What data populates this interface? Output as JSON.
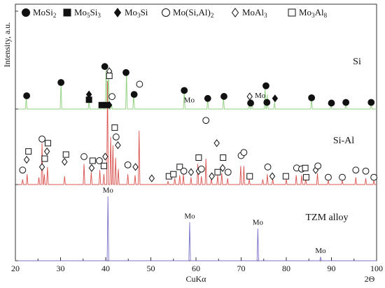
{
  "chart_data": {
    "type": "line",
    "xlabel": "CuKα",
    "xunit": "2Θ",
    "ylabel": "Intensity, a.u.",
    "xlim": [
      20,
      100
    ],
    "xticks": [
      20,
      30,
      40,
      50,
      60,
      70,
      80,
      90,
      100
    ],
    "legend": [
      {
        "name": "MoSi",
        "sub": "2",
        "marker": "filled-circle"
      },
      {
        "name": "Mo",
        "sub": "5",
        "name2": "Si",
        "sub2": "3",
        "marker": "filled-square"
      },
      {
        "name": "Mo",
        "sub": "3",
        "name2": "Si",
        "sub2": "",
        "marker": "filled-diamond"
      },
      {
        "name": "Mo(Si,Al)",
        "sub": "2",
        "marker": "open-circle"
      },
      {
        "name": "MoAl",
        "sub": "3",
        "marker": "open-diamond"
      },
      {
        "name": "Mo",
        "sub": "3",
        "name2": "Al",
        "sub2": "8",
        "marker": "open-square"
      }
    ],
    "colors": {
      "Si": "#8fd07c",
      "Si-Al": "#d9534f",
      "TZM alloy": "#7b73c9"
    },
    "series": [
      {
        "name": "Si",
        "baseline": 0.0,
        "peaks": [
          [
            22.4,
            0.17
          ],
          [
            30.1,
            0.37
          ],
          [
            36.3,
            0.12
          ],
          [
            39.2,
            0.06
          ],
          [
            40.1,
            0.62
          ],
          [
            40.6,
            0.58
          ],
          [
            41.3,
            0.06
          ],
          [
            44.6,
            0.56
          ],
          [
            46.2,
            0.22
          ],
          [
            57.4,
            0.26
          ],
          [
            62.6,
            0.14
          ],
          [
            66.1,
            0.17
          ],
          [
            71.8,
            0.1
          ],
          [
            72.4,
            0.14
          ],
          [
            75.3,
            0.32
          ],
          [
            75.8,
            0.22
          ],
          [
            77.4,
            0.1
          ],
          [
            85.6,
            0.16
          ],
          [
            89.9,
            0.07
          ],
          [
            93.2,
            0.09
          ],
          [
            98.8,
            0.09
          ]
        ],
        "markers": [
          {
            "x": 22.5,
            "y": 0.2,
            "m": "filled-circle"
          },
          {
            "x": 30.1,
            "y": 0.4,
            "m": "filled-circle"
          },
          {
            "x": 36.3,
            "y": 0.22,
            "m": "filled-diamond"
          },
          {
            "x": 36.3,
            "y": 0.14,
            "m": "filled-square"
          },
          {
            "x": 39.1,
            "y": 0.06,
            "m": "filled-square"
          },
          {
            "x": 39.8,
            "y": 0.64,
            "m": "filled-circle"
          },
          {
            "x": 40.2,
            "y": 0.06,
            "m": "filled-square"
          },
          {
            "x": 40.8,
            "y": 0.06,
            "m": "filled-diamond"
          },
          {
            "x": 40.8,
            "y": 0.57,
            "m": "open-diamond"
          },
          {
            "x": 40.8,
            "y": 0.5,
            "m": "open-square"
          },
          {
            "x": 44.5,
            "y": 0.55,
            "m": "filled-circle"
          },
          {
            "x": 46.3,
            "y": 0.22,
            "m": "filled-circle"
          },
          {
            "x": 57.4,
            "y": 0.28,
            "m": "filled-circle"
          },
          {
            "x": 62.6,
            "y": 0.16,
            "m": "filled-circle"
          },
          {
            "x": 66.2,
            "y": 0.19,
            "m": "filled-circle"
          },
          {
            "x": 71.9,
            "y": 0.19,
            "m": "open-diamond"
          },
          {
            "x": 72.1,
            "y": 0.09,
            "m": "filled-circle"
          },
          {
            "x": 75.5,
            "y": 0.35,
            "m": "filled-circle"
          },
          {
            "x": 75.7,
            "y": 0.1,
            "m": "filled-circle"
          },
          {
            "x": 77.5,
            "y": 0.16,
            "m": "filled-diamond"
          },
          {
            "x": 85.6,
            "y": 0.17,
            "m": "filled-circle"
          },
          {
            "x": 90.0,
            "y": 0.09,
            "m": "filled-circle"
          },
          {
            "x": 93.2,
            "y": 0.1,
            "m": "filled-circle"
          },
          {
            "x": 98.8,
            "y": 0.1,
            "m": "filled-circle"
          }
        ],
        "annotations": [
          {
            "text": "Mo",
            "x": 58.5,
            "y": 0.1
          },
          {
            "text": "Mo",
            "x": 74.2,
            "y": 0.17
          }
        ]
      },
      {
        "name": "Si-Al",
        "baseline": 0.0,
        "peaks": [
          [
            21.6,
            0.05
          ],
          [
            22.6,
            0.1
          ],
          [
            25.2,
            0.07
          ],
          [
            25.9,
            0.4
          ],
          [
            26.4,
            0.1
          ],
          [
            27.1,
            0.17
          ],
          [
            30.9,
            0.08
          ],
          [
            35.2,
            0.2
          ],
          [
            36.8,
            0.12
          ],
          [
            38.7,
            0.14
          ],
          [
            39.6,
            0.1
          ],
          [
            40.4,
            1.0
          ],
          [
            41.1,
            0.46
          ],
          [
            41.6,
            0.38
          ],
          [
            42.2,
            0.26
          ],
          [
            42.8,
            0.15
          ],
          [
            44.9,
            0.1
          ],
          [
            46.5,
            0.09
          ],
          [
            47.4,
            0.52
          ],
          [
            53.8,
            0.03
          ],
          [
            55.3,
            0.06
          ],
          [
            56.4,
            0.09
          ],
          [
            57.2,
            0.1
          ],
          [
            58.9,
            0.07
          ],
          [
            60.4,
            0.2
          ],
          [
            61.2,
            0.08
          ],
          [
            62.2,
            0.25
          ],
          [
            63.4,
            0.06
          ],
          [
            64.8,
            0.09
          ],
          [
            65.7,
            0.11
          ],
          [
            67.0,
            0.06
          ],
          [
            69.9,
            0.18
          ],
          [
            70.6,
            0.18
          ],
          [
            71.8,
            0.05
          ],
          [
            74.8,
            0.05
          ],
          [
            75.8,
            0.1
          ],
          [
            77.0,
            0.05
          ],
          [
            80.0,
            0.05
          ],
          [
            82.2,
            0.09
          ],
          [
            83.4,
            0.09
          ],
          [
            84.3,
            0.06
          ],
          [
            86.9,
            0.11
          ],
          [
            89.3,
            0.04
          ],
          [
            92.4,
            0.04
          ],
          [
            95.4,
            0.07
          ],
          [
            97.6,
            0.06
          ],
          [
            99.4,
            0.04
          ]
        ],
        "markers": [
          {
            "x": 21.6,
            "y": 0.14,
            "m": "open-circle"
          },
          {
            "x": 22.5,
            "y": 0.24,
            "m": "open-diamond"
          },
          {
            "x": 22.9,
            "y": 0.32,
            "m": "open-square"
          },
          {
            "x": 25.9,
            "y": 0.44,
            "m": "open-circle"
          },
          {
            "x": 25.9,
            "y": 0.17,
            "m": "open-diamond"
          },
          {
            "x": 26.5,
            "y": 0.25,
            "m": "open-square"
          },
          {
            "x": 27.0,
            "y": 0.32,
            "m": "open-diamond"
          },
          {
            "x": 27.2,
            "y": 0.4,
            "m": "open-square"
          },
          {
            "x": 30.9,
            "y": 0.22,
            "m": "open-diamond"
          },
          {
            "x": 31.2,
            "y": 0.29,
            "m": "open-square"
          },
          {
            "x": 35.2,
            "y": 0.27,
            "m": "open-circle"
          },
          {
            "x": 36.9,
            "y": 0.16,
            "m": "open-diamond"
          },
          {
            "x": 37.1,
            "y": 0.23,
            "m": "open-square"
          },
          {
            "x": 38.6,
            "y": 0.23,
            "m": "open-circle"
          },
          {
            "x": 39.6,
            "y": 0.18,
            "m": "open-square"
          },
          {
            "x": 39.9,
            "y": 0.27,
            "m": "open-diamond"
          },
          {
            "x": 41.4,
            "y": 0.85,
            "m": "open-circle"
          },
          {
            "x": 42.0,
            "y": 0.55,
            "m": "open-square"
          },
          {
            "x": 42.3,
            "y": 0.46,
            "m": "open-circle"
          },
          {
            "x": 42.7,
            "y": 0.38,
            "m": "open-diamond"
          },
          {
            "x": 44.9,
            "y": 0.19,
            "m": "open-circle"
          },
          {
            "x": 46.6,
            "y": 0.17,
            "m": "open-diamond"
          },
          {
            "x": 47.5,
            "y": 0.97,
            "m": "open-circle"
          },
          {
            "x": 50.2,
            "y": 0.06,
            "m": "open-diamond"
          },
          {
            "x": 54.0,
            "y": 0.08,
            "m": "open-square"
          },
          {
            "x": 55.0,
            "y": 0.1,
            "m": "open-square"
          },
          {
            "x": 56.4,
            "y": 0.17,
            "m": "open-square"
          },
          {
            "x": 57.3,
            "y": 0.13,
            "m": "open-circle"
          },
          {
            "x": 58.9,
            "y": 0.12,
            "m": "open-diamond"
          },
          {
            "x": 60.6,
            "y": 0.13,
            "m": "open-diamond"
          },
          {
            "x": 60.6,
            "y": 0.26,
            "m": "open-square"
          },
          {
            "x": 61.2,
            "y": 0.15,
            "m": "open-circle"
          },
          {
            "x": 62.2,
            "y": 0.62,
            "m": "open-circle"
          },
          {
            "x": 63.5,
            "y": 0.08,
            "m": "open-diamond"
          },
          {
            "x": 64.6,
            "y": 0.4,
            "m": "open-diamond"
          },
          {
            "x": 64.8,
            "y": 0.12,
            "m": "open-square"
          },
          {
            "x": 65.9,
            "y": 0.16,
            "m": "open-diamond"
          },
          {
            "x": 66.0,
            "y": 0.26,
            "m": "open-square"
          },
          {
            "x": 67.1,
            "y": 0.12,
            "m": "open-circle"
          },
          {
            "x": 70.0,
            "y": 0.28,
            "m": "open-circle"
          },
          {
            "x": 70.6,
            "y": 0.31,
            "m": "open-circle"
          },
          {
            "x": 71.9,
            "y": 0.08,
            "m": "open-square"
          },
          {
            "x": 75.9,
            "y": 0.17,
            "m": "open-circle"
          },
          {
            "x": 76.9,
            "y": 0.08,
            "m": "open-diamond"
          },
          {
            "x": 79.9,
            "y": 0.08,
            "m": "open-square"
          },
          {
            "x": 82.3,
            "y": 0.16,
            "m": "open-circle"
          },
          {
            "x": 83.4,
            "y": 0.15,
            "m": "open-circle"
          },
          {
            "x": 84.2,
            "y": 0.16,
            "m": "open-square"
          },
          {
            "x": 84.4,
            "y": 0.07,
            "m": "open-square"
          },
          {
            "x": 86.5,
            "y": 0.14,
            "m": "open-diamond"
          },
          {
            "x": 87.0,
            "y": 0.18,
            "m": "open-circle"
          },
          {
            "x": 89.3,
            "y": 0.07,
            "m": "open-circle"
          },
          {
            "x": 92.4,
            "y": 0.07,
            "m": "open-circle"
          },
          {
            "x": 95.4,
            "y": 0.14,
            "m": "open-circle"
          },
          {
            "x": 97.6,
            "y": 0.13,
            "m": "open-circle"
          },
          {
            "x": 99.4,
            "y": 0.07,
            "m": "open-circle"
          }
        ],
        "annotations": []
      },
      {
        "name": "TZM alloy",
        "baseline": 0.0,
        "peaks": [
          [
            40.5,
            1.0
          ],
          [
            58.6,
            0.6
          ],
          [
            73.7,
            0.5
          ],
          [
            87.6,
            0.06
          ]
        ],
        "markers": [],
        "annotations": [
          {
            "text": "Mo",
            "x": 40.5,
            "y": 1.06
          },
          {
            "text": "Mo",
            "x": 58.6,
            "y": 0.66
          },
          {
            "text": "Mo",
            "x": 73.7,
            "y": 0.56
          },
          {
            "text": "Mo",
            "x": 87.6,
            "y": 0.12
          }
        ]
      }
    ]
  }
}
